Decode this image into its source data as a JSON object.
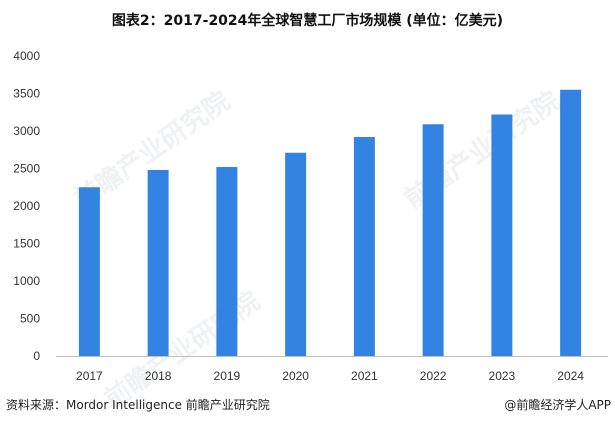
{
  "title": "图表2：2017-2024年全球智慧工厂市场规模 (单位：亿美元)",
  "chart_data": {
    "type": "bar",
    "title": "图表2：2017-2024年全球智慧工厂市场规模 (单位：亿美元)",
    "categories": [
      "2017",
      "2018",
      "2019",
      "2020",
      "2021",
      "2022",
      "2023",
      "2024"
    ],
    "values": [
      2250,
      2480,
      2520,
      2710,
      2920,
      3090,
      3220,
      3550
    ],
    "xlabel": "",
    "ylabel": "",
    "ylim": [
      0,
      4000
    ],
    "yticks": [
      "0",
      "500",
      "1000",
      "1500",
      "2000",
      "2500",
      "3000",
      "3500",
      "4000"
    ],
    "grid": false,
    "legend": "none",
    "bar_color": "#3383E3",
    "axis_color": "#BFBFBF"
  },
  "watermark": {
    "text": "前瞻产业研究院",
    "color": "#A0AAB9"
  },
  "footer": {
    "source": "资料来源：Mordor Intelligence 前瞻产业研究院",
    "brand": "@前瞻经济学人APP"
  }
}
